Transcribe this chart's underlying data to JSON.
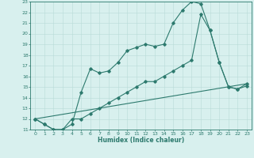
{
  "xlabel": "Humidex (Indice chaleur)",
  "bg_color": "#d8f0ee",
  "line_color": "#2d7a6e",
  "grid_color": "#b8dbd8",
  "xlim": [
    -0.5,
    23.5
  ],
  "ylim": [
    11,
    23
  ],
  "yticks": [
    11,
    12,
    13,
    14,
    15,
    16,
    17,
    18,
    19,
    20,
    21,
    22,
    23
  ],
  "xticks": [
    0,
    1,
    2,
    3,
    4,
    5,
    6,
    7,
    8,
    9,
    10,
    11,
    12,
    13,
    14,
    15,
    16,
    17,
    18,
    19,
    20,
    21,
    22,
    23
  ],
  "line1_x": [
    0,
    1,
    2,
    3,
    4,
    5,
    6,
    7,
    8,
    9,
    10,
    11,
    12,
    13,
    14,
    15,
    16,
    17,
    18,
    19,
    20,
    21,
    22,
    23
  ],
  "line1_y": [
    12,
    11.5,
    11,
    11,
    11.5,
    14.5,
    16.7,
    16.3,
    16.5,
    17.3,
    18.4,
    18.7,
    19.0,
    18.8,
    19.0,
    21.0,
    22.2,
    23.0,
    22.8,
    20.3,
    17.3,
    15.0,
    14.8,
    15.1
  ],
  "line2_x": [
    0,
    1,
    2,
    3,
    4,
    5,
    6,
    7,
    8,
    9,
    10,
    11,
    12,
    13,
    14,
    15,
    16,
    17,
    18,
    19,
    20,
    21,
    22,
    23
  ],
  "line2_y": [
    12,
    11.5,
    11,
    11,
    12,
    12,
    12.5,
    13.0,
    13.5,
    14.0,
    14.5,
    15.0,
    15.5,
    15.5,
    16.0,
    16.5,
    17.0,
    17.5,
    21.8,
    20.3,
    17.3,
    15.0,
    14.8,
    15.3
  ],
  "line3_x": [
    0,
    23
  ],
  "line3_y": [
    12,
    15.3
  ]
}
